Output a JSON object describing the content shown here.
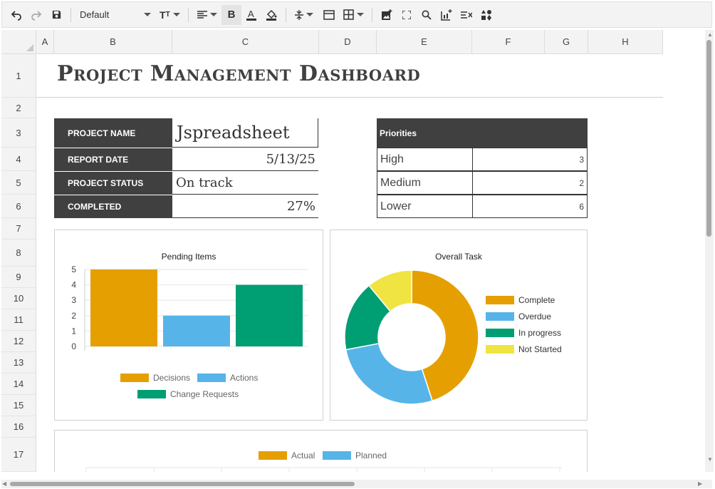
{
  "toolbar": {
    "font": "Default",
    "icons": [
      "undo-icon",
      "redo-icon",
      "save-icon",
      "font-size-icon",
      "align-icon",
      "bold-icon",
      "text-color-icon",
      "fill-color-icon",
      "line-height-icon",
      "merge-icon",
      "borders-icon",
      "insert-image-icon",
      "fullscreen-icon",
      "search-icon",
      "add-chart-icon",
      "clear-format-icon",
      "shapes-icon"
    ]
  },
  "columns": [
    "A",
    "B",
    "C",
    "D",
    "E",
    "F",
    "G",
    "H"
  ],
  "rows": [
    "1",
    "2",
    "3",
    "4",
    "5",
    "6",
    "7",
    "8",
    "9",
    "10",
    "11",
    "12",
    "13",
    "14",
    "15",
    "16",
    "17"
  ],
  "title": "Project Management Dashboard",
  "info": {
    "project_name_label": "PROJECT NAME",
    "project_name": "Jspreadsheet",
    "report_date_label": "REPORT DATE",
    "report_date": "5/13/25",
    "status_label": "PROJECT STATUS",
    "status": "On track",
    "completed_label": "COMPLETED",
    "completed": "27%"
  },
  "priorities": {
    "header": "Priorities",
    "rows": [
      {
        "name": "High",
        "value": "3"
      },
      {
        "name": "Medium",
        "value": "2"
      },
      {
        "name": "Lower",
        "value": "6"
      }
    ]
  },
  "chart_data": [
    {
      "type": "bar",
      "title": "Pending Items",
      "categories": [
        ""
      ],
      "series": [
        {
          "name": "Decisions",
          "values": [
            5
          ],
          "color": "#E69F00"
        },
        {
          "name": "Actions",
          "values": [
            2
          ],
          "color": "#56B4E9"
        },
        {
          "name": "Change Requests",
          "values": [
            4
          ],
          "color": "#009E73"
        }
      ],
      "ylim": [
        0,
        5
      ],
      "yticks": [
        "0",
        "1",
        "2",
        "3",
        "4",
        "5"
      ],
      "grid": true,
      "legend": "bottom"
    },
    {
      "type": "pie",
      "variant": "doughnut",
      "title": "Overall Task",
      "slices": [
        {
          "label": "Complete",
          "value": 45,
          "color": "#E69F00"
        },
        {
          "label": "Overdue",
          "value": 27,
          "color": "#56B4E9"
        },
        {
          "label": "In progress",
          "value": 17,
          "color": "#009E73"
        },
        {
          "label": "Not Started",
          "value": 11,
          "color": "#F0E442"
        }
      ],
      "legend": "right"
    },
    {
      "type": "bar",
      "title": "",
      "series": [
        {
          "name": "Actual",
          "color": "#E69F00"
        },
        {
          "name": "Planned",
          "color": "#56B4E9"
        }
      ],
      "legend": "top"
    }
  ]
}
